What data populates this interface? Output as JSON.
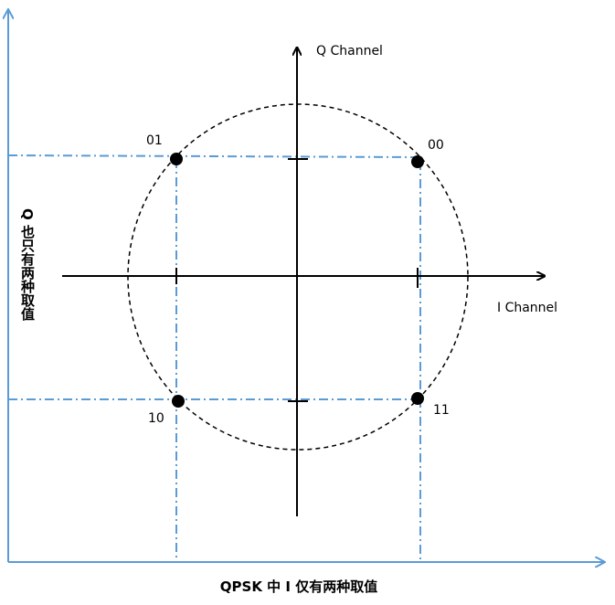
{
  "axes": {
    "q_label": "Q Channel",
    "i_label": "I Channel"
  },
  "points": [
    {
      "label": "01"
    },
    {
      "label": "00"
    },
    {
      "label": "10"
    },
    {
      "label": "11"
    }
  ],
  "captions": {
    "left": "Q 也只有两种取值",
    "bottom": "QPSK 中 I 仅有两种取值"
  }
}
